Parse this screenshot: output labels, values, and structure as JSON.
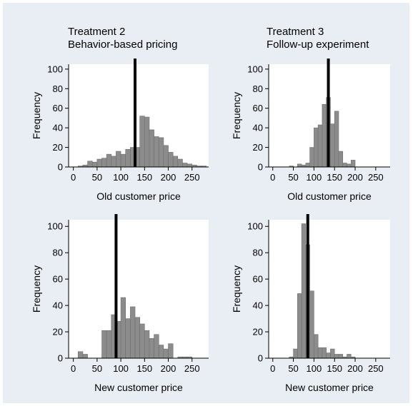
{
  "colors": {
    "background": "#e8eef3",
    "plot_area": "#ffffff",
    "bar": "#8c8c8c",
    "bar_edge": "#6e6e6e",
    "marker": "#000000"
  },
  "chart_data": [
    {
      "type": "bar",
      "title_lines": [
        "Treatment 2",
        "Behavior-based pricing"
      ],
      "xlabel": "Old customer price",
      "ylabel": "Frequency",
      "xlim": [
        -10,
        285
      ],
      "ylim": [
        0,
        105
      ],
      "xticks": [
        "0",
        "50",
        "100",
        "150",
        "200",
        "250"
      ],
      "yticks": [
        "0",
        "20",
        "40",
        "60",
        "80",
        "100"
      ],
      "bin_width": 10,
      "bins": [
        {
          "x": 10,
          "y": 1
        },
        {
          "x": 20,
          "y": 2
        },
        {
          "x": 30,
          "y": 6
        },
        {
          "x": 40,
          "y": 5
        },
        {
          "x": 50,
          "y": 8
        },
        {
          "x": 60,
          "y": 9
        },
        {
          "x": 70,
          "y": 13
        },
        {
          "x": 80,
          "y": 11
        },
        {
          "x": 90,
          "y": 16
        },
        {
          "x": 100,
          "y": 13
        },
        {
          "x": 110,
          "y": 18
        },
        {
          "x": 120,
          "y": 20
        },
        {
          "x": 130,
          "y": 20
        },
        {
          "x": 140,
          "y": 52
        },
        {
          "x": 150,
          "y": 51
        },
        {
          "x": 160,
          "y": 38
        },
        {
          "x": 170,
          "y": 31
        },
        {
          "x": 180,
          "y": 30
        },
        {
          "x": 190,
          "y": 22
        },
        {
          "x": 200,
          "y": 15
        },
        {
          "x": 210,
          "y": 11
        },
        {
          "x": 220,
          "y": 8
        },
        {
          "x": 230,
          "y": 4
        },
        {
          "x": 240,
          "y": 3
        },
        {
          "x": 250,
          "y": 2
        },
        {
          "x": 260,
          "y": 1
        },
        {
          "x": 270,
          "y": 1
        }
      ],
      "marker_x": 130
    },
    {
      "type": "bar",
      "title_lines": [
        "Treatment 3",
        "Follow-up experiment"
      ],
      "xlabel": "Old customer price",
      "ylabel": "Frequency",
      "xlim": [
        -10,
        285
      ],
      "ylim": [
        0,
        105
      ],
      "xticks": [
        "0",
        "50",
        "100",
        "150",
        "200",
        "250"
      ],
      "yticks": [
        "0",
        "20",
        "40",
        "60",
        "80",
        "100"
      ],
      "bin_width": 10,
      "bins": [
        {
          "x": 40,
          "y": 1
        },
        {
          "x": 50,
          "y": 0
        },
        {
          "x": 60,
          "y": 3
        },
        {
          "x": 70,
          "y": 2
        },
        {
          "x": 80,
          "y": 4
        },
        {
          "x": 90,
          "y": 20
        },
        {
          "x": 100,
          "y": 40
        },
        {
          "x": 110,
          "y": 43
        },
        {
          "x": 120,
          "y": 64
        },
        {
          "x": 130,
          "y": 71
        },
        {
          "x": 140,
          "y": 44
        },
        {
          "x": 150,
          "y": 57
        },
        {
          "x": 160,
          "y": 16
        },
        {
          "x": 170,
          "y": 4
        },
        {
          "x": 180,
          "y": 3
        },
        {
          "x": 190,
          "y": 7
        }
      ],
      "marker_x": 135
    },
    {
      "type": "bar",
      "title_lines": [],
      "xlabel": "New customer price",
      "ylabel": "Frequency",
      "xlim": [
        -10,
        285
      ],
      "ylim": [
        0,
        105
      ],
      "xticks": [
        "0",
        "50",
        "100",
        "150",
        "200",
        "250"
      ],
      "yticks": [
        "0",
        "20",
        "40",
        "60",
        "80",
        "100"
      ],
      "bin_width": 10,
      "bins": [
        {
          "x": 10,
          "y": 5
        },
        {
          "x": 20,
          "y": 3
        },
        {
          "x": 30,
          "y": 0
        },
        {
          "x": 40,
          "y": 0
        },
        {
          "x": 50,
          "y": 0
        },
        {
          "x": 60,
          "y": 21
        },
        {
          "x": 70,
          "y": 21
        },
        {
          "x": 80,
          "y": 33
        },
        {
          "x": 90,
          "y": 28
        },
        {
          "x": 100,
          "y": 46
        },
        {
          "x": 110,
          "y": 30
        },
        {
          "x": 120,
          "y": 39
        },
        {
          "x": 130,
          "y": 31
        },
        {
          "x": 140,
          "y": 26
        },
        {
          "x": 150,
          "y": 21
        },
        {
          "x": 160,
          "y": 15
        },
        {
          "x": 170,
          "y": 18
        },
        {
          "x": 180,
          "y": 10
        },
        {
          "x": 190,
          "y": 7
        },
        {
          "x": 200,
          "y": 11
        },
        {
          "x": 210,
          "y": 0
        },
        {
          "x": 220,
          "y": 1
        },
        {
          "x": 230,
          "y": 1
        },
        {
          "x": 240,
          "y": 1
        }
      ],
      "marker_x": 90
    },
    {
      "type": "bar",
      "title_lines": [],
      "xlabel": "New customer price",
      "ylabel": "Frequency",
      "xlim": [
        -10,
        285
      ],
      "ylim": [
        0,
        105
      ],
      "xticks": [
        "0",
        "50",
        "100",
        "150",
        "200",
        "250"
      ],
      "yticks": [
        "0",
        "20",
        "40",
        "60",
        "80",
        "100"
      ],
      "bin_width": 10,
      "bins": [
        {
          "x": 40,
          "y": 1
        },
        {
          "x": 50,
          "y": 7
        },
        {
          "x": 60,
          "y": 49
        },
        {
          "x": 70,
          "y": 102
        },
        {
          "x": 80,
          "y": 86
        },
        {
          "x": 90,
          "y": 51
        },
        {
          "x": 100,
          "y": 18
        },
        {
          "x": 110,
          "y": 8
        },
        {
          "x": 120,
          "y": 8
        },
        {
          "x": 130,
          "y": 4
        },
        {
          "x": 140,
          "y": 7
        },
        {
          "x": 150,
          "y": 3
        },
        {
          "x": 160,
          "y": 3
        },
        {
          "x": 170,
          "y": 1
        },
        {
          "x": 180,
          "y": 3
        },
        {
          "x": 190,
          "y": 1
        }
      ],
      "marker_x": 85
    }
  ]
}
